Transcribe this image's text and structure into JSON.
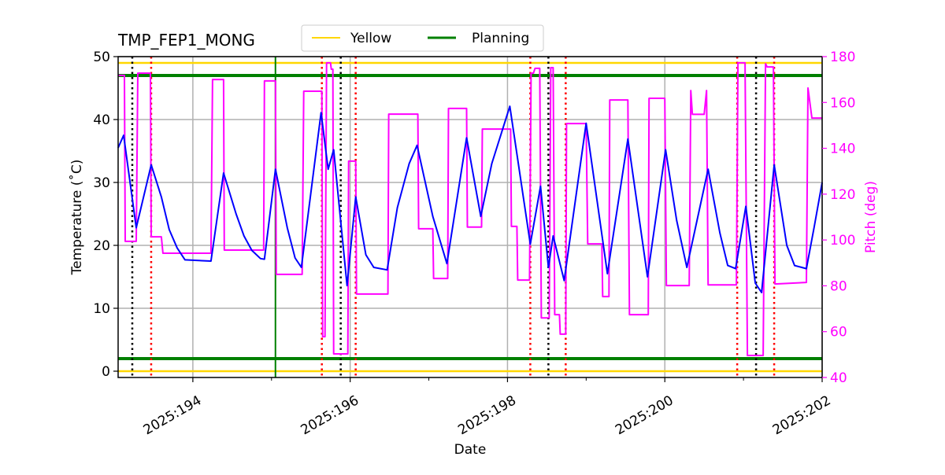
{
  "chart_data": {
    "type": "line",
    "title": "TMP_FEP1_MONG",
    "xlabel": "Date",
    "ylabel": "Temperature ($^\\circ$C)",
    "ylabel_display": "Temperature (˚C)",
    "y2label": "Pitch (deg)",
    "xlim": [
      193.05,
      202.0
    ],
    "ylim": [
      -1,
      50
    ],
    "y2lim": [
      40,
      180
    ],
    "x_ticks": [
      194,
      196,
      198,
      200,
      202
    ],
    "x_tick_labels": [
      "2025:194",
      "2025:196",
      "2025:198",
      "2025:200",
      "2025:202"
    ],
    "x_minor_ticks": [
      195,
      197,
      199,
      201
    ],
    "y_ticks": [
      0,
      10,
      20,
      30,
      40,
      50
    ],
    "y2_ticks": [
      40,
      60,
      80,
      100,
      120,
      140,
      160,
      180
    ],
    "grid": true,
    "legend": {
      "placement": "top-center",
      "entries": [
        {
          "name": "Yellow",
          "color": "#ffd700"
        },
        {
          "name": "Planning",
          "color": "#008000"
        }
      ]
    },
    "limit_lines": {
      "yellow": [
        0,
        49
      ],
      "planning": [
        2,
        47
      ]
    },
    "vlines": {
      "now": {
        "x": 195.05,
        "color": "#008000"
      },
      "black_dotted": [
        193.23,
        195.88,
        198.52,
        201.16
      ],
      "red_dotted": [
        193.47,
        195.64,
        196.07,
        198.29,
        198.74,
        200.92,
        201.39
      ]
    },
    "colors": {
      "temperature": "#0000ff",
      "pitch": "#ff00ff",
      "axis2": "#ff00ff"
    },
    "series": [
      {
        "axis": "left",
        "color": "#0000ff",
        "points": [
          [
            193.05,
            35.5
          ],
          [
            193.12,
            37.5
          ],
          [
            193.28,
            22.8
          ],
          [
            193.47,
            32.8
          ],
          [
            193.6,
            27.7
          ],
          [
            193.7,
            22.5
          ],
          [
            193.8,
            19.6
          ],
          [
            193.9,
            17.7
          ],
          [
            194.23,
            17.5
          ],
          [
            194.39,
            31.5
          ],
          [
            194.55,
            25
          ],
          [
            194.65,
            21.5
          ],
          [
            194.75,
            19.2
          ],
          [
            194.86,
            17.9
          ],
          [
            194.91,
            17.8
          ],
          [
            195.05,
            32.1
          ],
          [
            195.2,
            22.8
          ],
          [
            195.3,
            18
          ],
          [
            195.38,
            16.5
          ],
          [
            195.63,
            41.1
          ],
          [
            195.72,
            32.1
          ],
          [
            195.79,
            35.2
          ],
          [
            195.96,
            13.6
          ],
          [
            196.07,
            27.7
          ],
          [
            196.2,
            18.5
          ],
          [
            196.3,
            16.5
          ],
          [
            196.47,
            16.1
          ],
          [
            196.6,
            26
          ],
          [
            196.75,
            33
          ],
          [
            196.85,
            35.9
          ],
          [
            197.05,
            24.6
          ],
          [
            197.23,
            17.1
          ],
          [
            197.48,
            37.1
          ],
          [
            197.66,
            24.6
          ],
          [
            197.8,
            33
          ],
          [
            198.03,
            42.1
          ],
          [
            198.29,
            20.2
          ],
          [
            198.42,
            29.4
          ],
          [
            198.52,
            16.5
          ],
          [
            198.58,
            21.5
          ],
          [
            198.72,
            14.4
          ],
          [
            199.0,
            39.4
          ],
          [
            199.27,
            15.5
          ],
          [
            199.53,
            36.9
          ],
          [
            199.78,
            15.0
          ],
          [
            200.01,
            35.2
          ],
          [
            200.15,
            24
          ],
          [
            200.28,
            16.5
          ],
          [
            200.55,
            32.1
          ],
          [
            200.7,
            22
          ],
          [
            200.8,
            16.8
          ],
          [
            200.9,
            16.3
          ],
          [
            201.03,
            26.2
          ],
          [
            201.15,
            14
          ],
          [
            201.23,
            12.5
          ],
          [
            201.39,
            32.8
          ],
          [
            201.55,
            20
          ],
          [
            201.65,
            16.8
          ],
          [
            201.8,
            16.3
          ],
          [
            201.9,
            23
          ],
          [
            202.0,
            30
          ]
        ]
      },
      {
        "axis": "right",
        "color": "#ff00ff",
        "points": [
          [
            193.05,
            171.8
          ],
          [
            193.13,
            171.8
          ],
          [
            193.14,
            99.4
          ],
          [
            193.28,
            99.4
          ],
          [
            193.3,
            172.8
          ],
          [
            193.46,
            172.8
          ],
          [
            193.47,
            101.4
          ],
          [
            193.6,
            101.4
          ],
          [
            193.62,
            94.2
          ],
          [
            194.23,
            94.2
          ],
          [
            194.25,
            170
          ],
          [
            194.39,
            170
          ],
          [
            194.4,
            95.6
          ],
          [
            194.9,
            95.6
          ],
          [
            194.91,
            169.4
          ],
          [
            195.05,
            169.4
          ],
          [
            195.06,
            85
          ],
          [
            195.39,
            85
          ],
          [
            195.41,
            164.9
          ],
          [
            195.64,
            164.9
          ],
          [
            195.65,
            57.8
          ],
          [
            195.68,
            57.8
          ],
          [
            195.7,
            177.3
          ],
          [
            195.75,
            177.3
          ],
          [
            195.76,
            174.5
          ],
          [
            195.78,
            174.5
          ],
          [
            195.79,
            50.3
          ],
          [
            195.97,
            50.3
          ],
          [
            195.98,
            134.4
          ],
          [
            196.07,
            134.4
          ],
          [
            196.08,
            76.4
          ],
          [
            196.48,
            76.4
          ],
          [
            196.49,
            154.9
          ],
          [
            196.86,
            154.9
          ],
          [
            196.87,
            104.9
          ],
          [
            197.05,
            104.9
          ],
          [
            197.06,
            83.2
          ],
          [
            197.24,
            83.2
          ],
          [
            197.25,
            157.4
          ],
          [
            197.48,
            157.4
          ],
          [
            197.49,
            105.6
          ],
          [
            197.67,
            105.6
          ],
          [
            197.68,
            148.4
          ],
          [
            198.04,
            148.4
          ],
          [
            198.05,
            105.9
          ],
          [
            198.12,
            105.9
          ],
          [
            198.13,
            82.5
          ],
          [
            198.28,
            82.5
          ],
          [
            198.3,
            172.8
          ],
          [
            198.33,
            172.8
          ],
          [
            198.35,
            174.9
          ],
          [
            198.41,
            174.9
          ],
          [
            198.43,
            66
          ],
          [
            198.53,
            66
          ],
          [
            198.55,
            175.2
          ],
          [
            198.58,
            175.2
          ],
          [
            198.6,
            67.4
          ],
          [
            198.66,
            67.4
          ],
          [
            198.67,
            58.9
          ],
          [
            198.74,
            58.9
          ],
          [
            198.75,
            150.8
          ],
          [
            199.0,
            150.8
          ],
          [
            199.02,
            98.3
          ],
          [
            199.2,
            98.3
          ],
          [
            199.21,
            75.3
          ],
          [
            199.29,
            75.3
          ],
          [
            199.3,
            161.1
          ],
          [
            199.53,
            161.1
          ],
          [
            199.55,
            67.4
          ],
          [
            199.79,
            67.4
          ],
          [
            199.8,
            161.8
          ],
          [
            200.0,
            161.8
          ],
          [
            200.02,
            80.1
          ],
          [
            200.31,
            80.1
          ],
          [
            200.33,
            165.2
          ],
          [
            200.35,
            154.8
          ],
          [
            200.5,
            154.8
          ],
          [
            200.53,
            165.2
          ],
          [
            200.55,
            80.4
          ],
          [
            200.91,
            80.4
          ],
          [
            200.93,
            177.3
          ],
          [
            201.02,
            177.3
          ],
          [
            201.05,
            49.6
          ],
          [
            201.25,
            49.6
          ],
          [
            201.28,
            176.9
          ],
          [
            201.3,
            175.5
          ],
          [
            201.38,
            175.5
          ],
          [
            201.4,
            80.8
          ],
          [
            201.8,
            81.5
          ],
          [
            201.82,
            166.3
          ],
          [
            201.87,
            153.2
          ],
          [
            202.0,
            153.2
          ]
        ]
      }
    ]
  }
}
